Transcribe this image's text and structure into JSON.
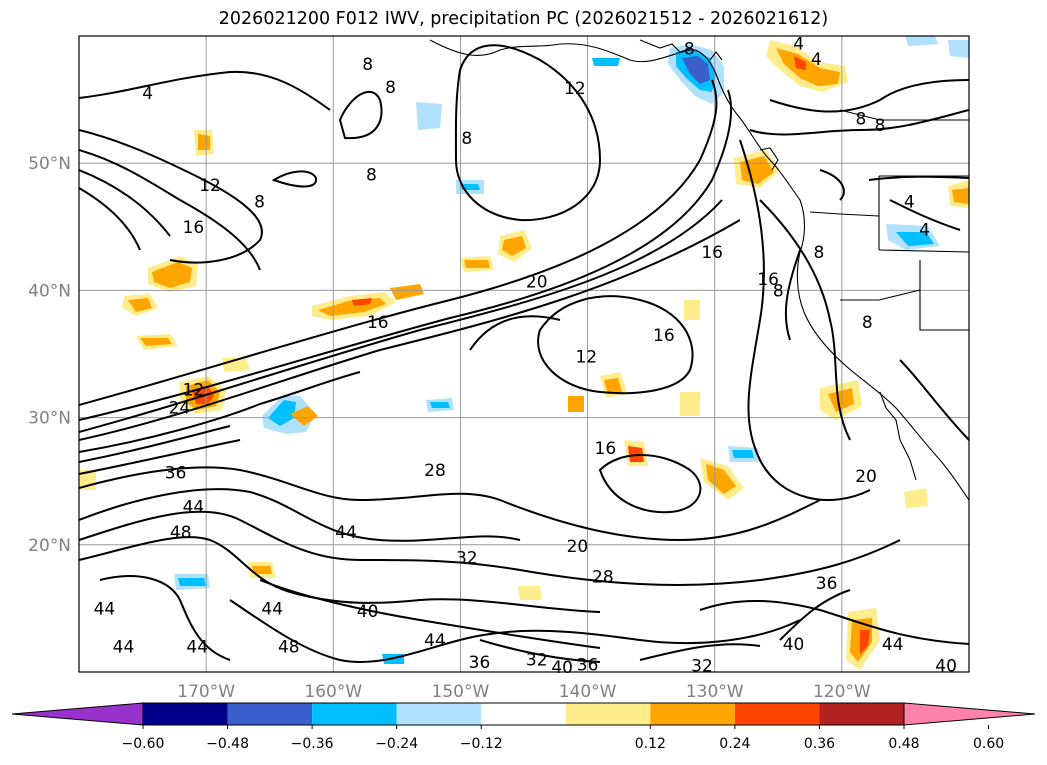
{
  "title": "2026021200 F012 IWV, precipitation PC (2026021512 - 2026021612)",
  "lat_labels": [
    {
      "lat": 50,
      "label": "50°N"
    },
    {
      "lat": 40,
      "label": "40°N"
    },
    {
      "lat": 30,
      "label": "30°N"
    },
    {
      "lat": 20,
      "label": "20°N"
    }
  ],
  "lon_labels": [
    {
      "lon": -170,
      "label": "170°W"
    },
    {
      "lon": -160,
      "label": "160°W"
    },
    {
      "lon": -150,
      "label": "150°W"
    },
    {
      "lon": -140,
      "label": "140°W"
    },
    {
      "lon": -130,
      "label": "130°W"
    },
    {
      "lon": -120,
      "label": "120°W"
    }
  ],
  "colorbar": {
    "ticks": [
      "−0.60",
      "−0.48",
      "−0.36",
      "−0.24",
      "−0.12",
      "0.12",
      "0.24",
      "0.36",
      "0.48",
      "0.60"
    ],
    "colors": [
      "#9932cc",
      "#00008b",
      "#3a5fcd",
      "#00bfff",
      "#b0e2ff",
      "#ffffff",
      "#ffec8b",
      "#ffa500",
      "#ff4500",
      "#b22222",
      "#ff82ab"
    ],
    "extend": "both"
  },
  "contour_labels": [
    {
      "text": "4",
      "lon": -174.6,
      "lat": 55.5
    },
    {
      "text": "8",
      "lon": -165.8,
      "lat": 47.0
    },
    {
      "text": "12",
      "lon": -169.7,
      "lat": 48.3
    },
    {
      "text": "16",
      "lon": -171.0,
      "lat": 45.0
    },
    {
      "text": "8",
      "lon": -157.3,
      "lat": 57.8
    },
    {
      "text": "8",
      "lon": -155.5,
      "lat": 56.0
    },
    {
      "text": "8",
      "lon": -149.5,
      "lat": 52.0
    },
    {
      "text": "8",
      "lon": -157.0,
      "lat": 49.1
    },
    {
      "text": "12",
      "lon": -141.0,
      "lat": 55.9
    },
    {
      "text": "8",
      "lon": -132.0,
      "lat": 59.0
    },
    {
      "text": "4",
      "lon": -123.4,
      "lat": 59.4
    },
    {
      "text": "4",
      "lon": -122.0,
      "lat": 58.2
    },
    {
      "text": "8",
      "lon": -118.5,
      "lat": 53.5
    },
    {
      "text": "8",
      "lon": -117.0,
      "lat": 53.0
    },
    {
      "text": "4",
      "lon": -114.7,
      "lat": 47.0
    },
    {
      "text": "4",
      "lon": -113.5,
      "lat": 44.8
    },
    {
      "text": "8",
      "lon": -121.8,
      "lat": 43.0
    },
    {
      "text": "16",
      "lon": -130.2,
      "lat": 43.0
    },
    {
      "text": "16",
      "lon": -125.8,
      "lat": 40.9
    },
    {
      "text": "8",
      "lon": -125.0,
      "lat": 40.0
    },
    {
      "text": "8",
      "lon": -118.0,
      "lat": 37.5
    },
    {
      "text": "20",
      "lon": -144.0,
      "lat": 40.7
    },
    {
      "text": "16",
      "lon": -156.5,
      "lat": 37.5
    },
    {
      "text": "16",
      "lon": -134.0,
      "lat": 36.5
    },
    {
      "text": "12",
      "lon": -140.1,
      "lat": 34.8
    },
    {
      "text": "12",
      "lon": -171.0,
      "lat": 32.2
    },
    {
      "text": "24",
      "lon": -172.1,
      "lat": 30.8
    },
    {
      "text": "36",
      "lon": -172.4,
      "lat": 25.7
    },
    {
      "text": "44",
      "lon": -171.0,
      "lat": 23.0
    },
    {
      "text": "48",
      "lon": -172.0,
      "lat": 21.0
    },
    {
      "text": "28",
      "lon": -152.0,
      "lat": 25.9
    },
    {
      "text": "16",
      "lon": -138.6,
      "lat": 27.6
    },
    {
      "text": "20",
      "lon": -118.1,
      "lat": 25.4
    },
    {
      "text": "44",
      "lon": -159.0,
      "lat": 21.0
    },
    {
      "text": "32",
      "lon": -149.5,
      "lat": 19.0
    },
    {
      "text": "20",
      "lon": -140.8,
      "lat": 19.9
    },
    {
      "text": "28",
      "lon": -138.8,
      "lat": 17.5
    },
    {
      "text": "36",
      "lon": -121.2,
      "lat": 17.0
    },
    {
      "text": "44",
      "lon": -178.0,
      "lat": 15.0
    },
    {
      "text": "44",
      "lon": -164.8,
      "lat": 15.0
    },
    {
      "text": "40",
      "lon": -157.3,
      "lat": 14.8
    },
    {
      "text": "44",
      "lon": -176.5,
      "lat": 12.0
    },
    {
      "text": "44",
      "lon": -170.7,
      "lat": 12.0
    },
    {
      "text": "48",
      "lon": -163.5,
      "lat": 12.0
    },
    {
      "text": "44",
      "lon": -152.0,
      "lat": 12.5
    },
    {
      "text": "36",
      "lon": -148.5,
      "lat": 10.8
    },
    {
      "text": "32",
      "lon": -144.0,
      "lat": 11.0
    },
    {
      "text": "40",
      "lon": -142.0,
      "lat": 10.4
    },
    {
      "text": "36",
      "lon": -140.0,
      "lat": 10.6
    },
    {
      "text": "32",
      "lon": -131.0,
      "lat": 10.5
    },
    {
      "text": "40",
      "lon": -123.8,
      "lat": 12.2
    },
    {
      "text": "44",
      "lon": -116.0,
      "lat": 12.2
    },
    {
      "text": "40",
      "lon": -111.8,
      "lat": 10.5
    }
  ]
}
